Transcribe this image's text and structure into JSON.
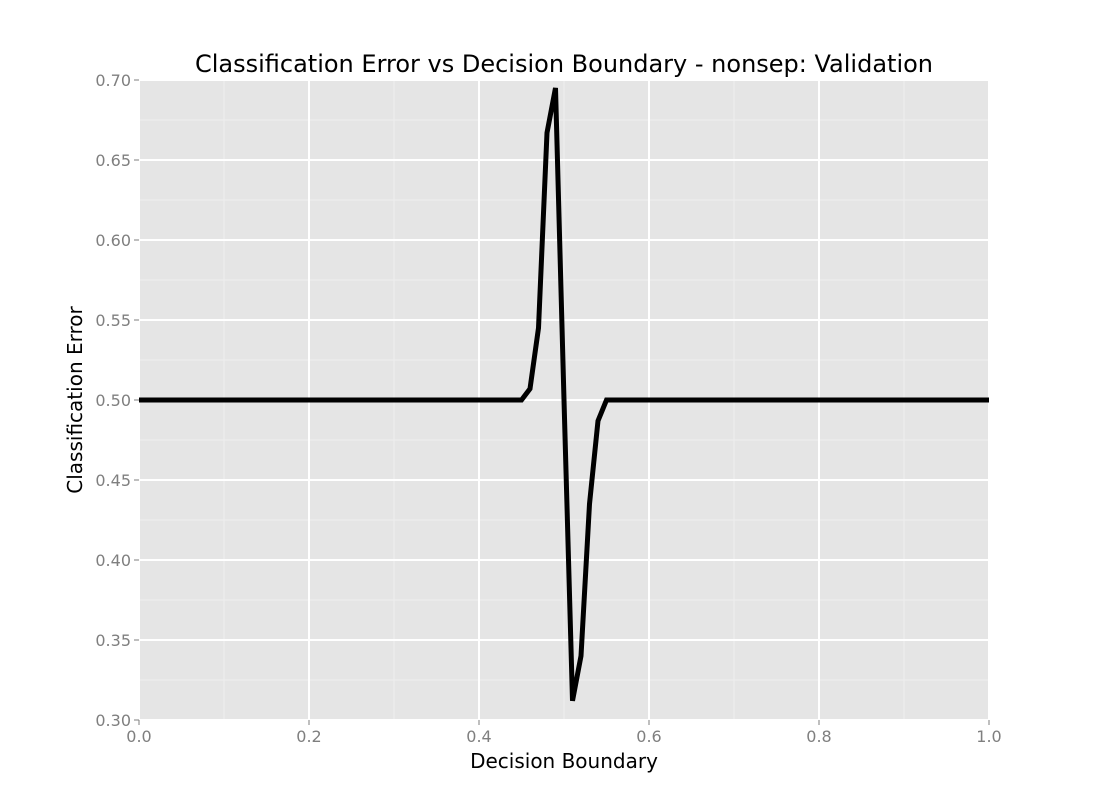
{
  "chart_data": {
    "type": "line",
    "title": "Classification Error vs Decision Boundary - nonsep: Validation",
    "xlabel": "Decision Boundary",
    "ylabel": "Classification Error",
    "xlim": [
      0.0,
      1.0
    ],
    "ylim": [
      0.3,
      0.7
    ],
    "x_ticks": [
      0.0,
      0.2,
      0.4,
      0.6,
      0.8,
      1.0
    ],
    "x_tick_labels": [
      "0.0",
      "0.2",
      "0.4",
      "0.6",
      "0.8",
      "1.0"
    ],
    "y_ticks": [
      0.3,
      0.35,
      0.4,
      0.45,
      0.5,
      0.55,
      0.6,
      0.65,
      0.7
    ],
    "y_tick_labels": [
      "0.30",
      "0.35",
      "0.40",
      "0.45",
      "0.50",
      "0.55",
      "0.60",
      "0.65",
      "0.70"
    ],
    "grid": true,
    "colors": {
      "panel_background": "#e5e5e5",
      "major_grid": "#ffffff",
      "minor_grid": "#efefef",
      "line": "#000000",
      "tick_label": "#7f7f7f"
    },
    "series": [
      {
        "x": [
          0.0,
          0.45,
          0.46,
          0.47,
          0.48,
          0.49,
          0.5,
          0.51,
          0.52,
          0.53,
          0.54,
          0.55,
          1.0
        ],
        "y": [
          0.5,
          0.5,
          0.507,
          0.545,
          0.667,
          0.695,
          0.5,
          0.312,
          0.34,
          0.435,
          0.487,
          0.5,
          0.5
        ]
      }
    ]
  }
}
